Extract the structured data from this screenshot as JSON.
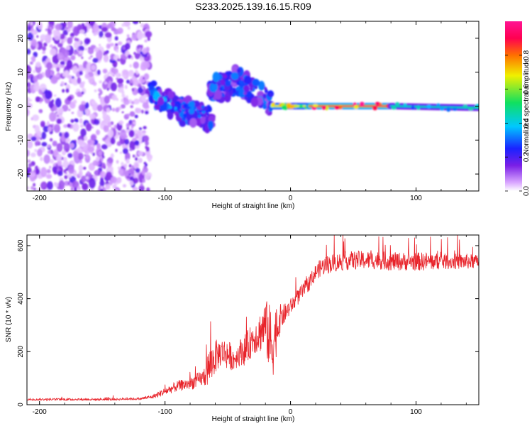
{
  "title": "S233.2025.139.16.15.R09",
  "chart_data": [
    {
      "type": "heatmap",
      "xlabel": "Height of straight line (km)",
      "ylabel": "Frequency (Hz)",
      "xlim": [
        -210,
        150
      ],
      "ylim": [
        -25,
        25
      ],
      "x_ticks": [
        -200,
        -100,
        0,
        100
      ],
      "y_ticks": [
        -20,
        -10,
        0,
        10,
        20
      ],
      "grid": false,
      "colorbar": {
        "label": "Normalized spectral amplitude",
        "range": [
          0,
          1
        ],
        "ticks": [
          0.0,
          0.2,
          0.4,
          0.6,
          0.8
        ],
        "colormap": [
          "#ffffff",
          "#d9a6ff",
          "#7a1fe6",
          "#1a22ff",
          "#00c8ff",
          "#10e060",
          "#f0f000",
          "#ff7000",
          "#ff0050",
          "#ff1493"
        ]
      },
      "features": [
        {
          "region": "noise",
          "x_range": [
            -210,
            -112
          ],
          "y_range": [
            -25,
            25
          ],
          "amplitude": 0.15
        },
        {
          "region": "band",
          "x_range": [
            -112,
            -85
          ],
          "y_at_start": 4,
          "y_at_end": -2,
          "amplitude": 0.35
        },
        {
          "region": "band",
          "x_range": [
            -85,
            -62
          ],
          "y_at_start": -1,
          "y_at_end": -4,
          "amplitude": 0.3
        },
        {
          "region": "band",
          "x_range": [
            -65,
            -45
          ],
          "y_at_start": 5,
          "y_at_end": 6,
          "amplitude": 0.3
        },
        {
          "region": "band",
          "x_range": [
            -45,
            -15
          ],
          "y_at_start": 8,
          "y_at_end": 1,
          "amplitude": 0.3
        },
        {
          "region": "line",
          "x_range": [
            -15,
            15
          ],
          "y_at_start": 0,
          "y_at_end": 0,
          "amplitude": 0.7
        },
        {
          "region": "line",
          "x_range": [
            15,
            80
          ],
          "y_at_start": 0,
          "y_at_end": 0,
          "amplitude": 0.95
        },
        {
          "region": "line",
          "x_range": [
            80,
            150
          ],
          "y_at_start": 0,
          "y_at_end": -0.5,
          "amplitude": 0.45
        }
      ]
    },
    {
      "type": "line",
      "xlabel": "Height of straight line (km)",
      "ylabel": "SNR (10 * v/v)",
      "xlim": [
        -210,
        150
      ],
      "ylim": [
        0,
        640
      ],
      "x_ticks": [
        -200,
        -100,
        0,
        100
      ],
      "y_ticks": [
        0,
        200,
        400,
        600
      ],
      "grid": false,
      "color": "#e8232a",
      "x": [
        -210,
        -200,
        -190,
        -180,
        -170,
        -160,
        -150,
        -140,
        -130,
        -120,
        -110,
        -100,
        -90,
        -80,
        -70,
        -65,
        -60,
        -55,
        -50,
        -45,
        -40,
        -35,
        -30,
        -25,
        -20,
        -15,
        -10,
        -8,
        -5,
        0,
        5,
        10,
        15,
        20,
        25,
        30,
        40,
        50,
        60,
        70,
        80,
        90,
        100,
        110,
        120,
        130,
        140,
        150
      ],
      "y": [
        20,
        20,
        20,
        20,
        20,
        20,
        20,
        20,
        22,
        22,
        30,
        50,
        70,
        80,
        100,
        140,
        180,
        200,
        190,
        170,
        200,
        210,
        250,
        270,
        300,
        220,
        300,
        330,
        340,
        370,
        400,
        430,
        460,
        500,
        520,
        530,
        540,
        545,
        545,
        545,
        540,
        540,
        540,
        540,
        540,
        540,
        540,
        540
      ],
      "spread": [
        8,
        8,
        8,
        8,
        8,
        8,
        8,
        8,
        8,
        8,
        15,
        30,
        40,
        50,
        60,
        150,
        130,
        100,
        120,
        80,
        100,
        130,
        120,
        150,
        200,
        300,
        150,
        100,
        80,
        60,
        60,
        60,
        60,
        60,
        70,
        70,
        70,
        70,
        70,
        70,
        70,
        70,
        70,
        70,
        60,
        60,
        60,
        50
      ]
    }
  ]
}
